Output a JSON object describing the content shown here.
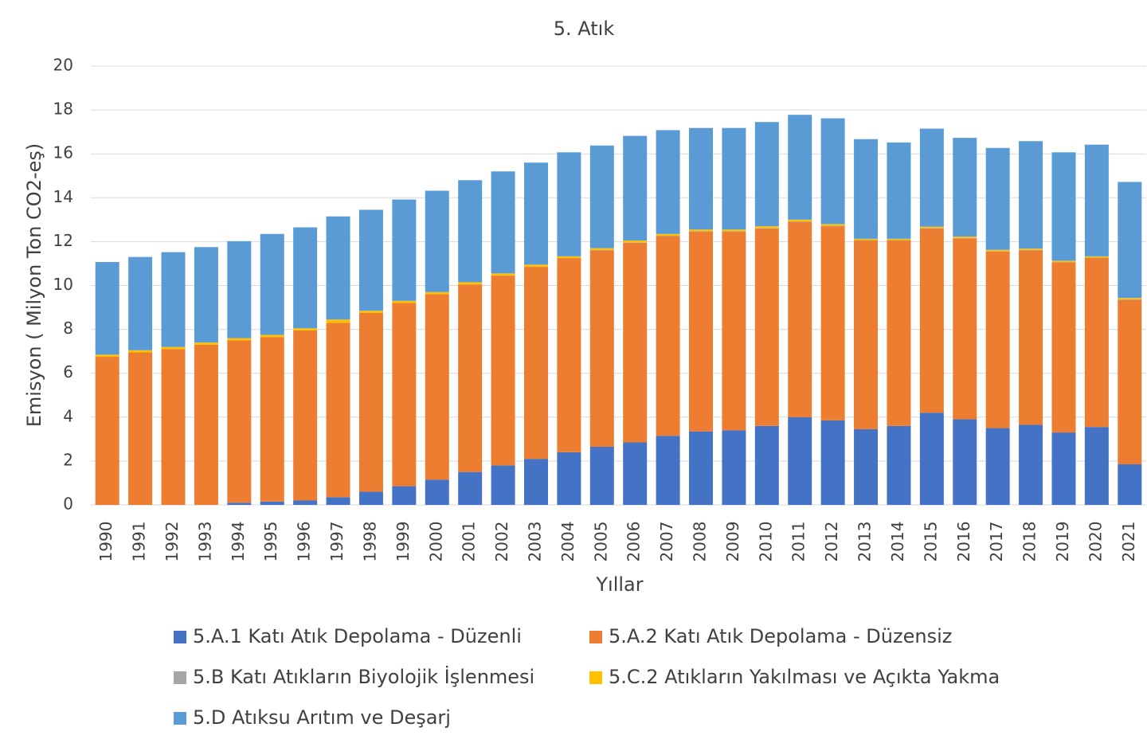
{
  "chart_data": {
    "type": "stacked_bar",
    "title": "5. Atık",
    "x_label": "Yıllar",
    "y_label": "Emisyon ( Milyon Ton CO2-eş)",
    "categories": [
      "1990",
      "1991",
      "1992",
      "1993",
      "1994",
      "1995",
      "1996",
      "1997",
      "1998",
      "1999",
      "2000",
      "2001",
      "2002",
      "2003",
      "2004",
      "2005",
      "2006",
      "2007",
      "2008",
      "2009",
      "2010",
      "2011",
      "2012",
      "2013",
      "2014",
      "2015",
      "2016",
      "2017",
      "2018",
      "2019",
      "2020",
      "2021"
    ],
    "series": [
      {
        "name": "5.A.1  Katı Atık Depolama - Düzenli",
        "color": "#4472c4",
        "values": [
          0,
          0,
          0,
          0,
          0.1,
          0.15,
          0.2,
          0.35,
          0.6,
          0.85,
          1.15,
          1.5,
          1.8,
          2.1,
          2.4,
          2.65,
          2.85,
          3.15,
          3.35,
          3.4,
          3.6,
          4.0,
          3.85,
          3.45,
          3.6,
          4.2,
          3.9,
          3.5,
          3.65,
          3.3,
          3.55,
          1.85
        ]
      },
      {
        "name": "5.A.2  Katı Atık Depolama - Düzensiz",
        "color": "#ed7d31",
        "values": [
          6.75,
          6.95,
          7.1,
          7.3,
          7.4,
          7.5,
          7.75,
          7.95,
          8.15,
          8.35,
          8.45,
          8.55,
          8.65,
          8.75,
          8.85,
          8.95,
          9.1,
          9.1,
          9.1,
          9.05,
          9.0,
          8.9,
          8.85,
          8.6,
          8.45,
          8.4,
          8.25,
          8.05,
          7.95,
          7.75,
          7.7,
          7.5
        ]
      },
      {
        "name": "5.B  Katı Atıkların Biyolojik İşlenmesi",
        "color": "#a5a5a5",
        "values": [
          0,
          0,
          0,
          0,
          0,
          0,
          0,
          0,
          0,
          0,
          0,
          0,
          0,
          0,
          0,
          0.02,
          0.02,
          0.02,
          0.02,
          0.02,
          0.02,
          0.02,
          0.02,
          0.02,
          0.02,
          0.02,
          0.02,
          0.02,
          0.02,
          0.02,
          0.02,
          0.02
        ]
      },
      {
        "name": "5.C.2  Atıkların Yakılması ve Açıkta Yakma",
        "color": "#ffc000",
        "values": [
          0.1,
          0.1,
          0.1,
          0.1,
          0.1,
          0.1,
          0.1,
          0.15,
          0.1,
          0.1,
          0.1,
          0.1,
          0.1,
          0.1,
          0.08,
          0.08,
          0.08,
          0.08,
          0.08,
          0.08,
          0.08,
          0.08,
          0.08,
          0.06,
          0.06,
          0.06,
          0.06,
          0.06,
          0.06,
          0.06,
          0.06,
          0.06
        ]
      },
      {
        "name": "5.D  Atıksu Arıtım ve Deşarj",
        "color": "#5b9bd5",
        "values": [
          4.22,
          4.25,
          4.32,
          4.35,
          4.42,
          4.6,
          4.6,
          4.7,
          4.6,
          4.62,
          4.62,
          4.65,
          4.65,
          4.65,
          4.74,
          4.68,
          4.77,
          4.73,
          4.63,
          4.63,
          4.75,
          4.78,
          4.82,
          4.54,
          4.39,
          4.47,
          4.5,
          4.64,
          4.9,
          4.94,
          5.09,
          5.29
        ]
      }
    ],
    "ylim": [
      0,
      20
    ],
    "yticks": [
      0,
      2,
      4,
      6,
      8,
      10,
      12,
      14,
      16,
      18,
      20
    ],
    "grid": true
  }
}
